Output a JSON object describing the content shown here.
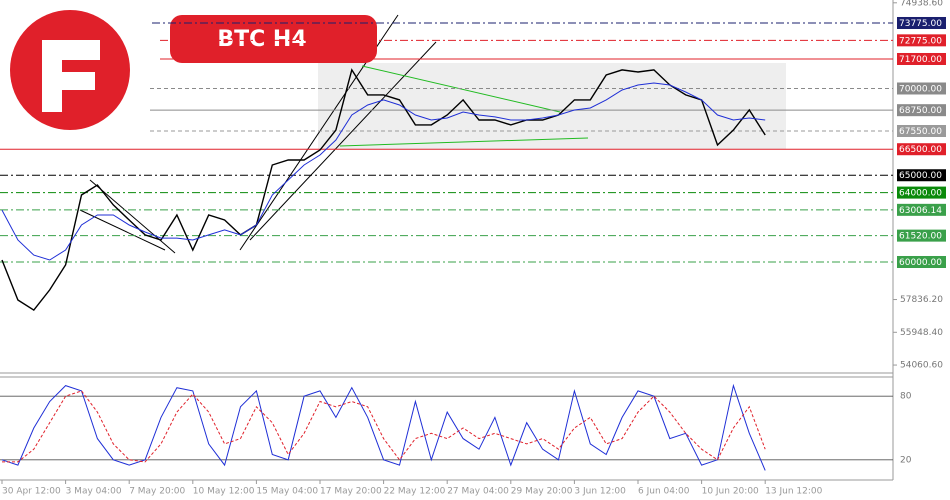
{
  "chart_data": [
    {
      "type": "line",
      "title": "BTC H4",
      "categories": [
        "30 Apr 12:00",
        null,
        null,
        null,
        "3 May 04:00",
        null,
        null,
        null,
        "7 May 20:00",
        null,
        null,
        null,
        "10 May 12:00",
        null,
        null,
        null,
        "15 May 04:00",
        null,
        null,
        null,
        "17 May 20:00",
        null,
        null,
        null,
        "22 May 12:00",
        null,
        null,
        null,
        "27 May 04:00",
        null,
        null,
        null,
        "29 May 20:00",
        null,
        null,
        null,
        "3 Jun 12:00",
        null,
        null,
        null,
        "6 Jun 04:00",
        null,
        null,
        null,
        "10 Jun 20:00",
        null,
        null,
        null,
        "13 Jun 12:00"
      ],
      "series": [
        {
          "color": "#000000",
          "values": [
            60115,
            57810,
            57230,
            58390,
            59830,
            63860,
            64440,
            63290,
            62420,
            61560,
            61270,
            62710,
            60690,
            62710,
            62420,
            61560,
            62130,
            65590,
            65880,
            65880,
            66455,
            67610,
            71070,
            69630,
            69630,
            69340,
            67900,
            67900,
            68470,
            69340,
            68185,
            68185,
            67900,
            68185,
            68185,
            68470,
            69340,
            69340,
            70780,
            71070,
            70950,
            71070,
            70200,
            69630,
            69340,
            66745,
            67610,
            68760,
            67320
          ]
        },
        {
          "color": "#1f2fd6",
          "values": [
            62990,
            61270,
            60400,
            60115,
            60690,
            62130,
            62710,
            62710,
            62130,
            61730,
            61380,
            61380,
            61270,
            61560,
            61850,
            61560,
            62130,
            63860,
            64725,
            65590,
            66165,
            67030,
            68470,
            69050,
            69340,
            69050,
            68470,
            68185,
            68300,
            68645,
            68470,
            68360,
            68185,
            68185,
            68300,
            68470,
            68760,
            68875,
            69340,
            69915,
            70200,
            70315,
            70200,
            69800,
            69340,
            68470,
            68185,
            68300,
            68185
          ]
        }
      ],
      "ylim": [
        53660,
        75100
      ],
      "yticks": [
        {
          "value": 74938.6,
          "label": "74938.60"
        },
        {
          "value": 57836.2,
          "label": "57836.20"
        },
        {
          "value": 55948.4,
          "label": "55948.40"
        },
        {
          "value": 54060.6,
          "label": "54060.60"
        }
      ],
      "levels": [
        {
          "value": 73775,
          "label": "73775.00",
          "color": "#1a1f6e",
          "style": "dashdot"
        },
        {
          "value": 72775,
          "label": "72775.00",
          "color": "#e0202a",
          "style": "dashdot"
        },
        {
          "value": 71700,
          "label": "71700.00",
          "color": "#e0202a",
          "style": "solid"
        },
        {
          "value": 70000,
          "label": "70000.00",
          "color": "#8a8a8a",
          "style": "dashed"
        },
        {
          "value": 68750,
          "label": "68750.00",
          "color": "#8a8a8a",
          "style": "solid"
        },
        {
          "value": 67550,
          "label": "67550.00",
          "color": "#9a9a9a",
          "style": "dashed"
        },
        {
          "value": 66500,
          "label": "66500.00",
          "color": "#e0202a",
          "style": "solid"
        },
        {
          "value": 65000,
          "label": "65000.00",
          "color": "#000000",
          "style": "dashdot"
        },
        {
          "value": 64000,
          "label": "64000.00",
          "color": "#0a8a0a",
          "style": "dashdot"
        },
        {
          "value": 63006.14,
          "label": "63006.14",
          "color": "#3aa04a",
          "style": "dashdot"
        },
        {
          "value": 61520,
          "label": "61520.00",
          "color": "#3aa04a",
          "style": "dashdot"
        },
        {
          "value": 60000,
          "label": "60000.00",
          "color": "#3aa04a",
          "style": "dashdot"
        }
      ]
    },
    {
      "type": "line",
      "series": [
        {
          "color": "#1f2fd6",
          "values": [
            20,
            15,
            50,
            75,
            90,
            85,
            40,
            20,
            15,
            20,
            60,
            88,
            85,
            35,
            15,
            70,
            85,
            25,
            20,
            80,
            85,
            60,
            88,
            60,
            20,
            15,
            75,
            20,
            65,
            40,
            30,
            60,
            15,
            55,
            30,
            20,
            85,
            35,
            25,
            60,
            85,
            80,
            40,
            45,
            15,
            20,
            90,
            45,
            10
          ]
        },
        {
          "color": "#e0202a",
          "dashed": true,
          "values": [
            18,
            18,
            30,
            55,
            80,
            85,
            65,
            35,
            20,
            18,
            35,
            65,
            82,
            65,
            35,
            40,
            70,
            55,
            25,
            45,
            75,
            70,
            75,
            70,
            40,
            20,
            40,
            45,
            40,
            50,
            40,
            45,
            40,
            35,
            40,
            30,
            50,
            60,
            35,
            40,
            65,
            80,
            65,
            45,
            30,
            20,
            50,
            70,
            30
          ]
        }
      ],
      "ylim": [
        0,
        100
      ],
      "yticks": [
        80,
        20
      ]
    }
  ]
}
